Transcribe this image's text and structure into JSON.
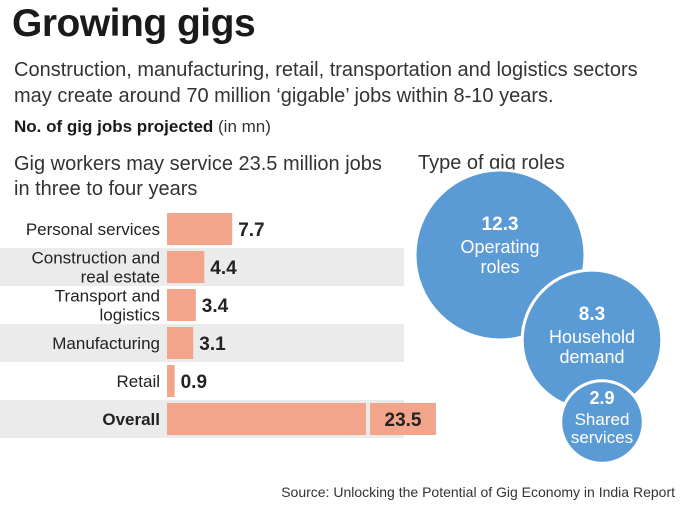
{
  "header": {
    "title": "Growing gigs",
    "subtitle": "Construction, manufacturing, retail, transportation and logistics sectors may create around 70 million ‘gigable’ jobs within 8-10 years.",
    "measure_bold": "No. of gig jobs projected",
    "measure_unit": "(in mn)"
  },
  "footer": {
    "source": "Source: Unlocking the Potential of Gig Economy in India Report"
  },
  "colors": {
    "bar": "#f2a58a",
    "band": "#ebebeb",
    "bubble": "#5b9bd5",
    "bubble_text": "#ffffff"
  },
  "chart_data": [
    {
      "type": "bar",
      "orientation": "horizontal",
      "title": "Gig workers may service 23.5 million jobs in three to four years",
      "categories": [
        [
          "Personal services"
        ],
        [
          "Construction and",
          "real estate"
        ],
        [
          "Transport and",
          "logistics"
        ],
        [
          "Manufacturing"
        ],
        [
          "Retail"
        ],
        [
          "Overall"
        ]
      ],
      "values": [
        7.7,
        4.4,
        3.4,
        3.1,
        0.9,
        23.5
      ],
      "value_labels": [
        "7.7",
        "4.4",
        "3.4",
        "3.1",
        "0.9",
        "23.5"
      ],
      "bold_category": "Overall"
    },
    {
      "type": "bubble",
      "title": "Type of gig roles",
      "items": [
        {
          "value": 12.3,
          "label": [
            "Operating",
            "roles"
          ],
          "value_label": "12.3"
        },
        {
          "value": 8.3,
          "label": [
            "Household",
            "demand"
          ],
          "value_label": "8.3"
        },
        {
          "value": 2.9,
          "label": [
            "Shared",
            "services"
          ],
          "value_label": "2.9"
        }
      ]
    }
  ]
}
